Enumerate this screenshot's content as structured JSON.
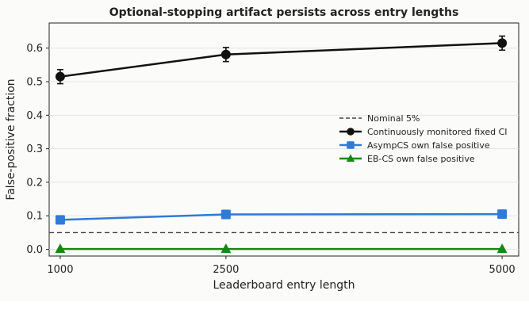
{
  "chart_data": {
    "type": "line",
    "title": "Optional-stopping artifact persists across entry lengths",
    "xlabel": "Leaderboard entry length",
    "ylabel": "False-positive fraction",
    "x": [
      1000,
      2500,
      5000
    ],
    "x_tick_labels": [
      "1000",
      "2500",
      "5000"
    ],
    "xlim": [
      900,
      5150
    ],
    "ylim": [
      -0.02,
      0.675
    ],
    "y_ticks": [
      0.0,
      0.1,
      0.2,
      0.3,
      0.4,
      0.5,
      0.6
    ],
    "y_tick_labels": [
      "0.0",
      "0.1",
      "0.2",
      "0.3",
      "0.4",
      "0.5",
      "0.6"
    ],
    "grid": true,
    "legend_position": "center-right",
    "reference_line": {
      "name": "Nominal 5%",
      "y": 0.05,
      "color": "#444444",
      "style": "dashed"
    },
    "series": [
      {
        "name": "Continuously monitored fixed CI",
        "color": "#111111",
        "marker": "circle",
        "values": [
          0.515,
          0.581,
          0.615
        ],
        "error": [
          0.021,
          0.021,
          0.021
        ]
      },
      {
        "name": "AsympCS own false positive",
        "color": "#2f7bd9",
        "marker": "square",
        "values": [
          0.088,
          0.104,
          0.105
        ],
        "error": [
          0,
          0,
          0
        ]
      },
      {
        "name": "EB-CS own false positive",
        "color": "#138a13",
        "marker": "triangle",
        "values": [
          0.001,
          0.001,
          0.001
        ],
        "error": [
          0,
          0,
          0
        ]
      }
    ]
  }
}
